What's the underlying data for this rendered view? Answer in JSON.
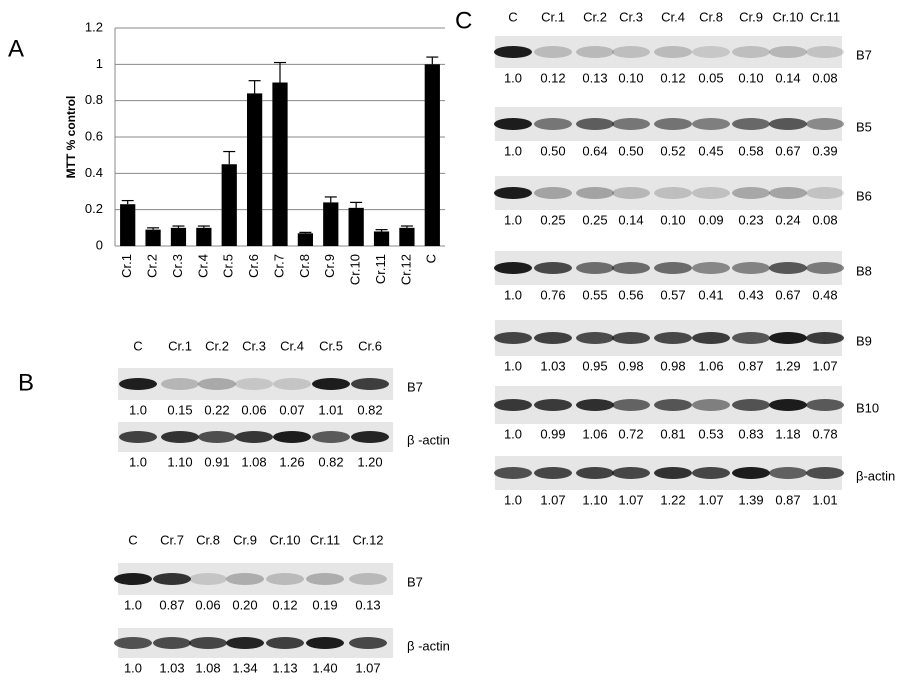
{
  "chart_data": {
    "type": "bar",
    "ylabel": "MTT % control",
    "categories": [
      "Cr.1",
      "Cr.2",
      "Cr.3",
      "Cr.4",
      "Cr.5",
      "Cr.6",
      "Cr.7",
      "Cr.8",
      "Cr.9",
      "Cr.10",
      "Cr.11",
      "Cr.12",
      "C"
    ],
    "values": [
      0.23,
      0.09,
      0.1,
      0.1,
      0.45,
      0.84,
      0.9,
      0.07,
      0.24,
      0.21,
      0.08,
      0.1,
      1.0
    ],
    "errors": [
      0.02,
      0.01,
      0.01,
      0.01,
      0.07,
      0.07,
      0.11,
      0.005,
      0.03,
      0.03,
      0.01,
      0.01,
      0.04
    ],
    "color": "#000000",
    "ylim": [
      0,
      1.2
    ],
    "yticks": [
      0,
      0.2,
      0.4,
      0.6,
      0.8,
      1,
      1.2
    ],
    "grid": true
  },
  "panel_a": {
    "label": "A"
  },
  "panel_b": {
    "label": "B",
    "blots": [
      {
        "lanes": [
          "C",
          "Cr.1",
          "Cr.2",
          "Cr.3",
          "Cr.4",
          "Cr.5",
          "Cr.6"
        ],
        "rows": [
          {
            "name": "B7",
            "values": [
              "1.0",
              "0.15",
              "0.22",
              "0.06",
              "0.07",
              "1.01",
              "0.82"
            ]
          },
          {
            "name": "β -actin",
            "values": [
              "1.0",
              "1.10",
              "0.91",
              "1.08",
              "1.26",
              "0.82",
              "1.20"
            ]
          }
        ]
      },
      {
        "lanes": [
          "C",
          "Cr.7",
          "Cr.8",
          "Cr.9",
          "Cr.10",
          "Cr.11",
          "Cr.12"
        ],
        "rows": [
          {
            "name": "B7",
            "values": [
              "1.0",
              "0.87",
              "0.06",
              "0.20",
              "0.12",
              "0.19",
              "0.13"
            ]
          },
          {
            "name": "β -actin",
            "values": [
              "1.0",
              "1.03",
              "1.08",
              "1.34",
              "1.13",
              "1.40",
              "1.07"
            ]
          }
        ]
      }
    ]
  },
  "panel_c": {
    "label": "C",
    "lanes": [
      "C",
      "Cr.1",
      "Cr.2",
      "Cr.3",
      "Cr.4",
      "Cr.8",
      "Cr.9",
      "Cr.10",
      "Cr.11"
    ],
    "rows": [
      {
        "name": "B7",
        "values": [
          "1.0",
          "0.12",
          "0.13",
          "0.10",
          "0.12",
          "0.05",
          "0.10",
          "0.14",
          "0.08"
        ]
      },
      {
        "name": "B5",
        "values": [
          "1.0",
          "0.50",
          "0.64",
          "0.50",
          "0.52",
          "0.45",
          "0.58",
          "0.67",
          "0.39"
        ]
      },
      {
        "name": "B6",
        "values": [
          "1.0",
          "0.25",
          "0.25",
          "0.14",
          "0.10",
          "0.09",
          "0.23",
          "0.24",
          "0.08"
        ]
      },
      {
        "name": "B8",
        "values": [
          "1.0",
          "0.76",
          "0.55",
          "0.56",
          "0.57",
          "0.41",
          "0.43",
          "0.67",
          "0.48"
        ]
      },
      {
        "name": "B9",
        "values": [
          "1.0",
          "1.03",
          "0.95",
          "0.98",
          "0.98",
          "1.06",
          "0.87",
          "1.29",
          "1.07"
        ]
      },
      {
        "name": "B10",
        "values": [
          "1.0",
          "0.99",
          "1.06",
          "0.72",
          "0.81",
          "0.53",
          "0.83",
          "1.18",
          "0.78"
        ]
      },
      {
        "name": "β-actin",
        "values": [
          "1.0",
          "1.07",
          "1.10",
          "1.07",
          "1.22",
          "1.07",
          "1.39",
          "0.87",
          "1.01"
        ]
      }
    ]
  }
}
